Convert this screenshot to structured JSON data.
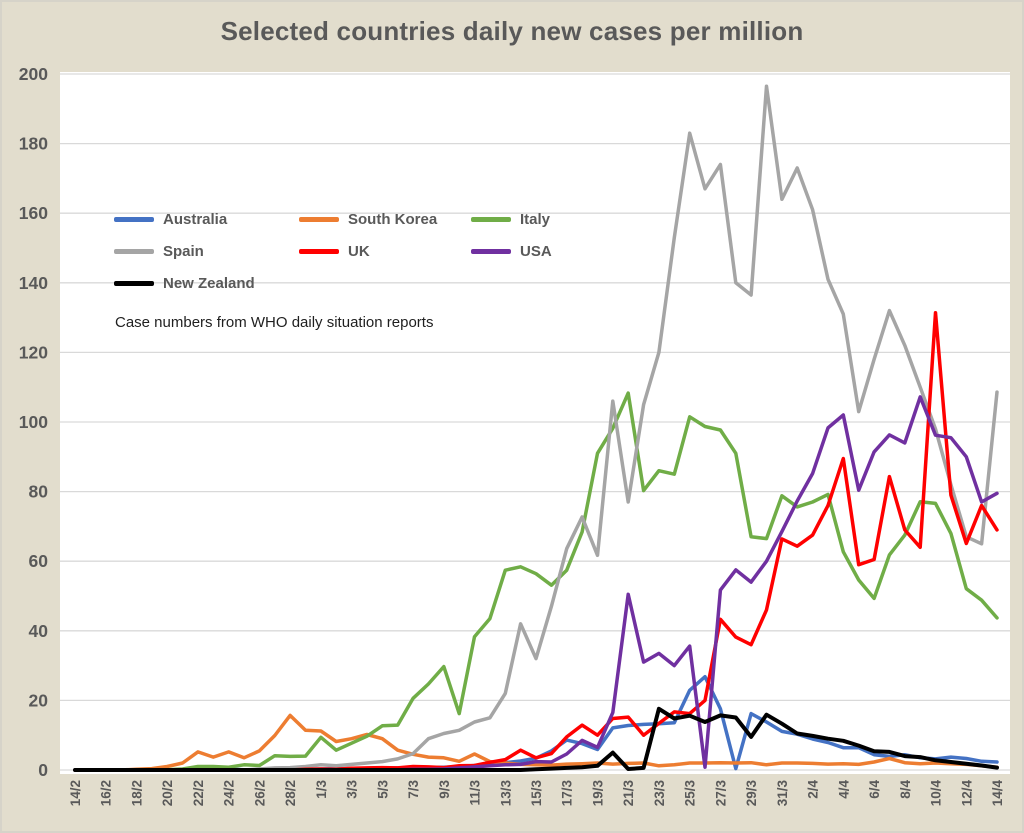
{
  "chart_data": {
    "type": "line",
    "title": "Selected countries daily new cases per million",
    "caption": "Case numbers from WHO daily situation reports",
    "xlabel": "",
    "ylabel": "",
    "ylim": [
      0,
      200
    ],
    "y_step": 20,
    "grid": "horizontal",
    "legend_position": "inside-top-left",
    "x_tick_step": 2,
    "x_dates": [
      "14/2",
      "15/2",
      "16/2",
      "17/2",
      "18/2",
      "19/2",
      "20/2",
      "21/2",
      "22/2",
      "23/2",
      "24/2",
      "25/2",
      "26/2",
      "27/2",
      "28/2",
      "29/2",
      "1/3",
      "2/3",
      "3/3",
      "4/3",
      "5/3",
      "6/3",
      "7/3",
      "8/3",
      "9/3",
      "10/3",
      "11/3",
      "12/3",
      "13/3",
      "14/3",
      "15/3",
      "16/3",
      "17/3",
      "18/3",
      "19/3",
      "20/3",
      "21/3",
      "22/3",
      "23/3",
      "24/3",
      "25/3",
      "26/3",
      "27/3",
      "28/3",
      "29/3",
      "30/3",
      "31/3",
      "1/4",
      "2/4",
      "3/4",
      "4/4",
      "5/4",
      "6/4",
      "7/4",
      "8/4",
      "9/4",
      "10/4",
      "11/4",
      "12/4",
      "13/4",
      "14/4"
    ],
    "series": [
      {
        "name": "Australia",
        "color": "#4472C4",
        "values": [
          0,
          0,
          0,
          0,
          0,
          0,
          0,
          0,
          0.2,
          0.2,
          0.2,
          0.1,
          0.1,
          0.2,
          0.3,
          0.2,
          0.3,
          0.4,
          0.4,
          0.5,
          0.6,
          0.6,
          0.7,
          0.8,
          0.8,
          1,
          1.3,
          1.6,
          2.1,
          2.6,
          3.4,
          5.5,
          8.6,
          7.6,
          5.9,
          12.1,
          12.8,
          13.1,
          13.3,
          13.6,
          22.9,
          26.8,
          17.6,
          0.4,
          16.2,
          13.8,
          11.1,
          10.3,
          8.9,
          7.9,
          6.4,
          6.4,
          4.4,
          3.9,
          4.4,
          3.5,
          3.2,
          3.7,
          3.3,
          2.5,
          2.3
        ]
      },
      {
        "name": "South Korea",
        "color": "#ED7D31",
        "values": [
          0,
          0,
          0,
          0,
          0.2,
          0.4,
          1,
          2,
          5.2,
          3.7,
          5.2,
          3.5,
          5.5,
          9.9,
          15.7,
          11.4,
          11.2,
          8.2,
          9,
          10.2,
          9,
          5.7,
          4.5,
          3.7,
          3.5,
          2.5,
          4.6,
          2.4,
          2,
          1.6,
          1.5,
          1.4,
          1.7,
          1.8,
          2,
          1.7,
          1.9,
          2,
          1.2,
          1.5,
          2,
          2,
          2.1,
          2,
          2.1,
          1.5,
          2,
          2,
          1.9,
          1.7,
          1.8,
          1.6,
          2.3,
          3.3,
          2.1,
          1.8,
          2,
          1.8,
          1.6,
          1.2,
          0.8
        ]
      },
      {
        "name": "Italy",
        "color": "#70AD47",
        "values": [
          0,
          0,
          0,
          0,
          0,
          0,
          0.1,
          0.3,
          1,
          1,
          0.8,
          1.5,
          1.3,
          4.1,
          3.9,
          4,
          9.4,
          5.7,
          7.7,
          9.7,
          12.7,
          12.9,
          20.6,
          24.7,
          29.7,
          16.2,
          38.3,
          43.5,
          57.4,
          58.4,
          56.4,
          53.1,
          57.4,
          68.4,
          91,
          98.2,
          108.3,
          80.3,
          86,
          85,
          101.5,
          98.7,
          97.7,
          91,
          67,
          66.5,
          78.8,
          75.6,
          77,
          79.2,
          62.7,
          54.6,
          49.3,
          61.8,
          67.5,
          77.1,
          76.6,
          68,
          52.1,
          48.8,
          43.7
        ]
      },
      {
        "name": "Spain",
        "color": "#A5A5A5",
        "values": [
          0,
          0,
          0,
          0,
          0,
          0,
          0,
          0,
          0,
          0,
          0,
          0,
          0.3,
          0.6,
          0.7,
          1,
          1.5,
          1.2,
          1.6,
          2,
          2.4,
          3.2,
          4.7,
          9,
          10.5,
          11.4,
          13.8,
          15,
          22,
          42,
          32,
          47,
          63.6,
          72.7,
          61.7,
          106,
          77,
          105,
          120,
          153,
          183,
          167,
          174,
          140,
          136.5,
          196.5,
          164,
          173,
          161,
          141,
          131,
          103,
          118,
          132,
          122,
          110,
          98,
          82,
          67,
          65,
          108.6
        ]
      },
      {
        "name": "UK",
        "color": "#FF0000",
        "values": [
          0,
          0,
          0,
          0,
          0,
          0,
          0,
          0,
          0,
          0,
          0,
          0,
          0,
          0,
          0,
          0.2,
          0.3,
          0.2,
          0.5,
          0.6,
          0.7,
          0.6,
          1,
          0.9,
          0.7,
          1.2,
          1.3,
          2.2,
          3,
          5.7,
          3.5,
          4.7,
          9.5,
          12.9,
          10,
          14.8,
          15.2,
          10,
          13.4,
          16.7,
          16.2,
          20,
          43.3,
          38.2,
          36,
          46,
          66.4,
          64.3,
          67.5,
          76,
          89.5,
          59,
          60.5,
          84.3,
          69,
          64,
          131.4,
          79,
          65.1,
          76,
          69
        ]
      },
      {
        "name": "USA",
        "color": "#7030A0",
        "values": [
          0,
          0,
          0,
          0,
          0,
          0,
          0,
          0,
          0,
          0,
          0,
          0,
          0,
          0,
          0,
          0,
          0,
          0,
          0,
          0,
          0.1,
          0.1,
          0.2,
          0.2,
          0.3,
          0.6,
          0.9,
          1.2,
          1.5,
          1.6,
          2.4,
          2.3,
          4.6,
          8.5,
          6.5,
          16.5,
          50.5,
          31,
          33.5,
          30,
          35.6,
          0.8,
          51.7,
          57.5,
          54,
          60,
          68.5,
          77.3,
          85.2,
          98.3,
          102,
          80.4,
          91.4,
          96.3,
          94,
          107.2,
          96.2,
          95.5,
          90,
          77,
          79.5
        ]
      },
      {
        "name": "New Zealand",
        "color": "#000000",
        "values": [
          0,
          0,
          0,
          0,
          0,
          0,
          0,
          0,
          0,
          0,
          0,
          0,
          0,
          0,
          0,
          0,
          0,
          0,
          0,
          0,
          0,
          0,
          0,
          0,
          0,
          0,
          0,
          0,
          0,
          0,
          0.2,
          0.4,
          0.6,
          0.8,
          1.2,
          5,
          0.3,
          0.6,
          17.6,
          14.8,
          15.6,
          13.8,
          15.7,
          15.1,
          9.5,
          15.9,
          13.3,
          10.5,
          9.8,
          9,
          8.4,
          7,
          5.4,
          5.2,
          4,
          3.7,
          2.8,
          2.3,
          1.8,
          1.3,
          0.7
        ]
      }
    ],
    "y_tick_labels": [
      0,
      20,
      40,
      60,
      80,
      100,
      120,
      140,
      160,
      180,
      200
    ]
  },
  "colors": {
    "background": "#e2ddcd",
    "plot_background": "#ffffff",
    "gridline": "#d9d9d9",
    "axis_text": "#595959",
    "title_text": "#595959"
  }
}
